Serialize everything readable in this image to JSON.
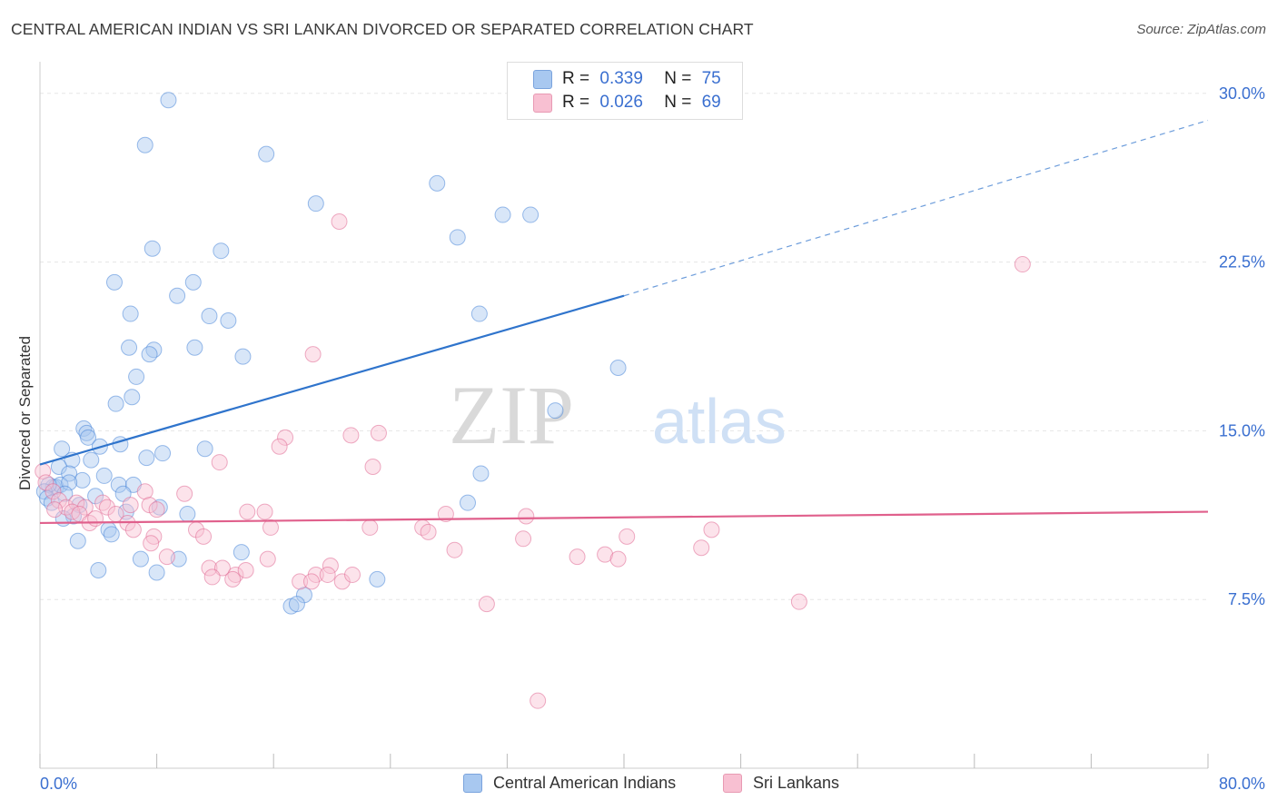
{
  "title": "CENTRAL AMERICAN INDIAN VS SRI LANKAN DIVORCED OR SEPARATED CORRELATION CHART",
  "source": "Source: ZipAtlas.com",
  "watermark": {
    "zip": "ZIP",
    "atlas": "atlas"
  },
  "legend": {
    "r_label": "R =",
    "n_label": "N =",
    "rows": [
      {
        "r": "0.339",
        "n": "75",
        "color": "#a8c8f0",
        "border": "#7aa3dd"
      },
      {
        "r": "0.026",
        "n": "69",
        "color": "#f8c0d2",
        "border": "#e89ab3"
      }
    ]
  },
  "bottom_legend": [
    {
      "label": "Central American Indians",
      "color": "#a8c8f0",
      "border": "#7aa3dd"
    },
    {
      "label": "Sri Lankans",
      "color": "#f8c0d2",
      "border": "#e89ab3"
    }
  ],
  "chart_data": {
    "type": "scatter",
    "title": "CENTRAL AMERICAN INDIAN VS SRI LANKAN DIVORCED OR SEPARATED CORRELATION CHART",
    "xlabel": "",
    "ylabel": "Divorced or Separated",
    "xlim": [
      0,
      80
    ],
    "ylim": [
      0,
      31
    ],
    "x_tick_labels": [
      "0.0%",
      "80.0%"
    ],
    "y_ticks": [
      7.5,
      15.0,
      22.5,
      30.0
    ],
    "y_tick_labels": [
      "7.5%",
      "15.0%",
      "22.5%",
      "30.0%"
    ],
    "grid": true,
    "legend_position": "top-center",
    "series": [
      {
        "name": "Central American Indians",
        "color": "#4a86d8",
        "fill": "rgba(168,200,240,0.45)",
        "trend": {
          "x": [
            0,
            40
          ],
          "y": [
            13.5,
            21.0
          ],
          "dashed_to": [
            80,
            28.8
          ],
          "color": "#2f74cc"
        },
        "points": [
          [
            8.8,
            29.7
          ],
          [
            7.2,
            27.7
          ],
          [
            15.5,
            27.3
          ],
          [
            27.2,
            26.0
          ],
          [
            18.9,
            25.1
          ],
          [
            31.7,
            24.6
          ],
          [
            33.6,
            24.6
          ],
          [
            28.6,
            23.6
          ],
          [
            7.7,
            23.1
          ],
          [
            12.4,
            23.0
          ],
          [
            5.1,
            21.6
          ],
          [
            10.5,
            21.6
          ],
          [
            9.4,
            21.0
          ],
          [
            6.2,
            20.2
          ],
          [
            11.6,
            20.1
          ],
          [
            12.9,
            19.9
          ],
          [
            30.1,
            20.2
          ],
          [
            6.1,
            18.7
          ],
          [
            7.8,
            18.6
          ],
          [
            7.5,
            18.4
          ],
          [
            10.6,
            18.7
          ],
          [
            13.9,
            18.3
          ],
          [
            39.6,
            17.8
          ],
          [
            6.6,
            17.4
          ],
          [
            6.3,
            16.5
          ],
          [
            5.2,
            16.2
          ],
          [
            35.3,
            15.9
          ],
          [
            3.0,
            15.1
          ],
          [
            3.2,
            14.9
          ],
          [
            3.3,
            14.7
          ],
          [
            1.5,
            14.2
          ],
          [
            4.1,
            14.3
          ],
          [
            5.5,
            14.4
          ],
          [
            8.4,
            14.0
          ],
          [
            11.3,
            14.2
          ],
          [
            7.3,
            13.8
          ],
          [
            2.2,
            13.7
          ],
          [
            3.5,
            13.7
          ],
          [
            1.3,
            13.4
          ],
          [
            2.0,
            13.1
          ],
          [
            4.4,
            13.0
          ],
          [
            2.9,
            12.8
          ],
          [
            0.9,
            12.5
          ],
          [
            1.1,
            12.5
          ],
          [
            1.4,
            12.6
          ],
          [
            2.0,
            12.7
          ],
          [
            0.6,
            12.6
          ],
          [
            0.3,
            12.3
          ],
          [
            0.5,
            12.0
          ],
          [
            0.8,
            11.8
          ],
          [
            1.7,
            12.2
          ],
          [
            5.4,
            12.6
          ],
          [
            6.4,
            12.6
          ],
          [
            30.2,
            13.1
          ],
          [
            5.7,
            12.2
          ],
          [
            3.8,
            12.1
          ],
          [
            2.7,
            11.7
          ],
          [
            8.2,
            11.6
          ],
          [
            10.1,
            11.3
          ],
          [
            2.3,
            11.2
          ],
          [
            1.6,
            11.1
          ],
          [
            5.9,
            11.4
          ],
          [
            4.7,
            10.6
          ],
          [
            4.9,
            10.4
          ],
          [
            2.6,
            10.1
          ],
          [
            9.5,
            9.3
          ],
          [
            13.8,
            9.6
          ],
          [
            6.9,
            9.3
          ],
          [
            8.0,
            8.7
          ],
          [
            4.0,
            8.8
          ],
          [
            23.1,
            8.4
          ],
          [
            18.1,
            7.7
          ],
          [
            17.2,
            7.2
          ],
          [
            17.6,
            7.3
          ],
          [
            29.3,
            11.8
          ]
        ]
      },
      {
        "name": "Sri Lankans",
        "color": "#e06a93",
        "fill": "rgba(248,192,210,0.45)",
        "trend": {
          "x": [
            0,
            80
          ],
          "y": [
            10.9,
            11.4
          ],
          "color": "#e0608c"
        },
        "points": [
          [
            67.3,
            22.4
          ],
          [
            20.5,
            24.3
          ],
          [
            18.7,
            18.4
          ],
          [
            16.8,
            14.7
          ],
          [
            21.3,
            14.8
          ],
          [
            23.2,
            14.9
          ],
          [
            16.4,
            14.3
          ],
          [
            12.3,
            13.6
          ],
          [
            22.8,
            13.4
          ],
          [
            0.2,
            13.2
          ],
          [
            0.4,
            12.7
          ],
          [
            0.9,
            12.3
          ],
          [
            1.3,
            11.9
          ],
          [
            1.8,
            11.6
          ],
          [
            2.5,
            11.8
          ],
          [
            3.1,
            11.6
          ],
          [
            4.3,
            11.8
          ],
          [
            4.6,
            11.6
          ],
          [
            6.2,
            11.7
          ],
          [
            7.2,
            12.3
          ],
          [
            7.5,
            11.7
          ],
          [
            8.0,
            11.5
          ],
          [
            9.9,
            12.2
          ],
          [
            1.0,
            11.5
          ],
          [
            2.2,
            11.4
          ],
          [
            2.7,
            11.3
          ],
          [
            3.4,
            10.9
          ],
          [
            3.8,
            11.1
          ],
          [
            5.2,
            11.3
          ],
          [
            6.0,
            10.9
          ],
          [
            6.4,
            10.6
          ],
          [
            7.8,
            10.3
          ],
          [
            10.7,
            10.6
          ],
          [
            11.2,
            10.3
          ],
          [
            14.2,
            11.4
          ],
          [
            15.4,
            11.4
          ],
          [
            15.8,
            10.7
          ],
          [
            22.6,
            10.7
          ],
          [
            26.2,
            10.7
          ],
          [
            26.6,
            10.5
          ],
          [
            27.8,
            11.3
          ],
          [
            33.3,
            11.2
          ],
          [
            33.1,
            10.2
          ],
          [
            40.2,
            10.3
          ],
          [
            46.0,
            10.6
          ],
          [
            28.4,
            9.7
          ],
          [
            7.6,
            10.0
          ],
          [
            8.7,
            9.4
          ],
          [
            36.8,
            9.4
          ],
          [
            38.7,
            9.5
          ],
          [
            39.6,
            9.3
          ],
          [
            45.3,
            9.8
          ],
          [
            11.6,
            8.9
          ],
          [
            12.5,
            8.9
          ],
          [
            13.4,
            8.6
          ],
          [
            14.1,
            8.8
          ],
          [
            15.6,
            9.3
          ],
          [
            18.9,
            8.6
          ],
          [
            19.9,
            9.0
          ],
          [
            19.7,
            8.6
          ],
          [
            20.7,
            8.3
          ],
          [
            21.4,
            8.6
          ],
          [
            17.8,
            8.3
          ],
          [
            18.6,
            8.3
          ],
          [
            11.8,
            8.5
          ],
          [
            13.2,
            8.4
          ],
          [
            30.6,
            7.3
          ],
          [
            52.0,
            7.4
          ],
          [
            34.1,
            3.0
          ]
        ]
      }
    ]
  }
}
